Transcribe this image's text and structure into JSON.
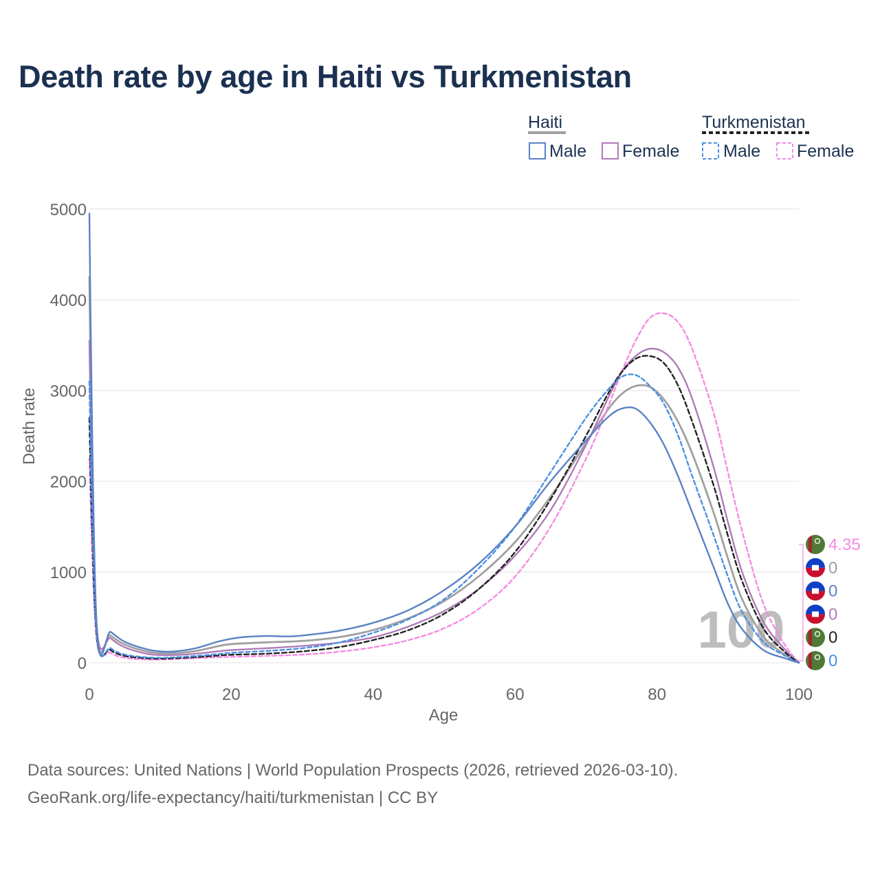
{
  "colors": {
    "haiti_male": "#5a82c6",
    "haiti_female": "#b07ab9",
    "haiti_total": "#a0a0a0",
    "turk_male": "#4a90e2",
    "turk_female": "#f58ae3",
    "turk_total": "#222222",
    "title": "#1c3151",
    "axis_text": "#666666",
    "grid": "#e6e6e6",
    "turkmenistan_flag_green": "#4f7a35",
    "haiti_flag_blue": "#0f3fc4",
    "haiti_flag_red": "#c8102e"
  },
  "chart_data": {
    "type": "line",
    "title": "Death rate by age in Haiti vs Turkmenistan",
    "xlabel": "Age",
    "ylabel": "Death rate",
    "xlim": [
      0,
      100
    ],
    "ylim": [
      0,
      5000
    ],
    "xticks": [
      0,
      20,
      40,
      60,
      80,
      100
    ],
    "yticks": [
      0,
      1000,
      2000,
      3000,
      4000,
      5000
    ],
    "grid": true,
    "legend": {
      "placement": "top-right",
      "groups": [
        {
          "country": "Haiti",
          "entries": [
            "Male",
            "Female"
          ]
        },
        {
          "country": "Turkmenistan",
          "entries": [
            "Male",
            "Female"
          ]
        }
      ]
    },
    "watermark": "100",
    "end_labels": [
      {
        "country": "Turkmenistan",
        "series": "Female",
        "value": "4.35",
        "color_key": "turk_female"
      },
      {
        "country": "Haiti",
        "series": "Total",
        "value": "0",
        "color_key": "haiti_total"
      },
      {
        "country": "Haiti",
        "series": "Male",
        "value": "0",
        "color_key": "haiti_male"
      },
      {
        "country": "Haiti",
        "series": "Female",
        "value": "0",
        "color_key": "haiti_female"
      },
      {
        "country": "Turkmenistan",
        "series": "Total",
        "value": "0",
        "color_key": "turk_total"
      },
      {
        "country": "Turkmenistan",
        "series": "Male",
        "value": "0",
        "color_key": "turk_male"
      }
    ],
    "series": [
      {
        "name": "Haiti Male",
        "country": "Haiti",
        "sex": "Male",
        "color_key": "haiti_male",
        "dash": "solid",
        "points": [
          [
            0,
            4950
          ],
          [
            1,
            450
          ],
          [
            3,
            340
          ],
          [
            5,
            230
          ],
          [
            8,
            150
          ],
          [
            10,
            125
          ],
          [
            12,
            125
          ],
          [
            15,
            160
          ],
          [
            18,
            230
          ],
          [
            20,
            265
          ],
          [
            22,
            285
          ],
          [
            25,
            295
          ],
          [
            28,
            290
          ],
          [
            30,
            300
          ],
          [
            35,
            350
          ],
          [
            40,
            440
          ],
          [
            45,
            580
          ],
          [
            50,
            800
          ],
          [
            55,
            1100
          ],
          [
            60,
            1500
          ],
          [
            65,
            2000
          ],
          [
            70,
            2450
          ],
          [
            73,
            2700
          ],
          [
            75,
            2800
          ],
          [
            77,
            2800
          ],
          [
            79,
            2650
          ],
          [
            81,
            2400
          ],
          [
            83,
            2050
          ],
          [
            85,
            1650
          ],
          [
            88,
            1050
          ],
          [
            90,
            650
          ],
          [
            92,
            370
          ],
          [
            95,
            140
          ],
          [
            98,
            50
          ],
          [
            100,
            0
          ]
        ]
      },
      {
        "name": "Haiti Female",
        "country": "Haiti",
        "sex": "Female",
        "color_key": "haiti_female",
        "dash": "solid",
        "points": [
          [
            0,
            3550
          ],
          [
            1,
            430
          ],
          [
            3,
            270
          ],
          [
            5,
            170
          ],
          [
            8,
            100
          ],
          [
            10,
            85
          ],
          [
            12,
            85
          ],
          [
            15,
            100
          ],
          [
            18,
            125
          ],
          [
            20,
            140
          ],
          [
            25,
            160
          ],
          [
            30,
            185
          ],
          [
            35,
            220
          ],
          [
            40,
            280
          ],
          [
            45,
            400
          ],
          [
            50,
            570
          ],
          [
            55,
            820
          ],
          [
            60,
            1180
          ],
          [
            65,
            1680
          ],
          [
            70,
            2400
          ],
          [
            73,
            2900
          ],
          [
            75,
            3200
          ],
          [
            77,
            3380
          ],
          [
            79,
            3460
          ],
          [
            81,
            3420
          ],
          [
            83,
            3250
          ],
          [
            85,
            2900
          ],
          [
            88,
            2150
          ],
          [
            90,
            1550
          ],
          [
            92,
            1000
          ],
          [
            95,
            450
          ],
          [
            98,
            150
          ],
          [
            100,
            0
          ]
        ]
      },
      {
        "name": "Haiti Total",
        "country": "Haiti",
        "sex": "Total",
        "color_key": "haiti_total",
        "dash": "solid",
        "points": [
          [
            0,
            4250
          ],
          [
            1,
            440
          ],
          [
            3,
            300
          ],
          [
            5,
            200
          ],
          [
            8,
            125
          ],
          [
            10,
            105
          ],
          [
            12,
            105
          ],
          [
            15,
            130
          ],
          [
            18,
            180
          ],
          [
            20,
            205
          ],
          [
            25,
            225
          ],
          [
            30,
            240
          ],
          [
            35,
            280
          ],
          [
            40,
            360
          ],
          [
            45,
            490
          ],
          [
            50,
            680
          ],
          [
            55,
            960
          ],
          [
            60,
            1330
          ],
          [
            65,
            1830
          ],
          [
            70,
            2420
          ],
          [
            73,
            2780
          ],
          [
            75,
            2960
          ],
          [
            77,
            3050
          ],
          [
            79,
            3040
          ],
          [
            81,
            2900
          ],
          [
            83,
            2650
          ],
          [
            85,
            2300
          ],
          [
            88,
            1650
          ],
          [
            90,
            1150
          ],
          [
            92,
            700
          ],
          [
            95,
            290
          ],
          [
            98,
            90
          ],
          [
            100,
            0
          ]
        ]
      },
      {
        "name": "Turkmenistan Male",
        "country": "Turkmenistan",
        "sex": "Male",
        "color_key": "turk_male",
        "dash": "dashed",
        "points": [
          [
            0,
            3100
          ],
          [
            1,
            330
          ],
          [
            3,
            160
          ],
          [
            5,
            90
          ],
          [
            8,
            60
          ],
          [
            10,
            55
          ],
          [
            12,
            60
          ],
          [
            15,
            75
          ],
          [
            18,
            95
          ],
          [
            20,
            110
          ],
          [
            25,
            130
          ],
          [
            30,
            160
          ],
          [
            35,
            220
          ],
          [
            40,
            330
          ],
          [
            45,
            480
          ],
          [
            50,
            700
          ],
          [
            55,
            1050
          ],
          [
            60,
            1500
          ],
          [
            65,
            2100
          ],
          [
            70,
            2700
          ],
          [
            73,
            3000
          ],
          [
            75,
            3150
          ],
          [
            77,
            3170
          ],
          [
            79,
            3050
          ],
          [
            81,
            2850
          ],
          [
            83,
            2500
          ],
          [
            85,
            2050
          ],
          [
            88,
            1400
          ],
          [
            90,
            950
          ],
          [
            92,
            560
          ],
          [
            95,
            230
          ],
          [
            98,
            80
          ],
          [
            100,
            0
          ]
        ]
      },
      {
        "name": "Turkmenistan Female",
        "country": "Turkmenistan",
        "sex": "Female",
        "color_key": "turk_female",
        "dash": "dashed",
        "points": [
          [
            0,
            2250
          ],
          [
            1,
            280
          ],
          [
            3,
            110
          ],
          [
            5,
            55
          ],
          [
            8,
            35
          ],
          [
            10,
            35
          ],
          [
            12,
            40
          ],
          [
            15,
            50
          ],
          [
            18,
            60
          ],
          [
            20,
            65
          ],
          [
            25,
            75
          ],
          [
            30,
            90
          ],
          [
            35,
            120
          ],
          [
            40,
            170
          ],
          [
            45,
            250
          ],
          [
            50,
            380
          ],
          [
            55,
            600
          ],
          [
            60,
            950
          ],
          [
            65,
            1500
          ],
          [
            70,
            2250
          ],
          [
            73,
            2800
          ],
          [
            75,
            3200
          ],
          [
            77,
            3550
          ],
          [
            79,
            3800
          ],
          [
            81,
            3850
          ],
          [
            83,
            3750
          ],
          [
            85,
            3450
          ],
          [
            88,
            2750
          ],
          [
            90,
            2100
          ],
          [
            92,
            1450
          ],
          [
            95,
            650
          ],
          [
            98,
            200
          ],
          [
            100,
            4.35
          ]
        ]
      },
      {
        "name": "Turkmenistan Total",
        "country": "Turkmenistan",
        "sex": "Total",
        "color_key": "turk_total",
        "dash": "dashed",
        "points": [
          [
            0,
            2700
          ],
          [
            1,
            310
          ],
          [
            3,
            140
          ],
          [
            5,
            75
          ],
          [
            8,
            50
          ],
          [
            10,
            45
          ],
          [
            12,
            50
          ],
          [
            15,
            62
          ],
          [
            18,
            78
          ],
          [
            20,
            88
          ],
          [
            25,
            100
          ],
          [
            30,
            125
          ],
          [
            35,
            170
          ],
          [
            40,
            250
          ],
          [
            45,
            360
          ],
          [
            50,
            540
          ],
          [
            55,
            820
          ],
          [
            60,
            1220
          ],
          [
            65,
            1800
          ],
          [
            70,
            2500
          ],
          [
            73,
            2950
          ],
          [
            75,
            3200
          ],
          [
            77,
            3350
          ],
          [
            79,
            3380
          ],
          [
            81,
            3300
          ],
          [
            83,
            3050
          ],
          [
            85,
            2650
          ],
          [
            88,
            1950
          ],
          [
            90,
            1400
          ],
          [
            92,
            900
          ],
          [
            95,
            380
          ],
          [
            98,
            120
          ],
          [
            100,
            0
          ]
        ]
      }
    ]
  },
  "legend_labels": {
    "haiti": "Haiti",
    "turkmenistan": "Turkmenistan",
    "haiti_male": "Male",
    "haiti_female": "Female",
    "turk_male": "Male",
    "turk_female": "Female"
  },
  "footer": {
    "sources": "Data sources: United Nations | World Population Prospects (2026, retrieved 2026-03-10).",
    "link": "GeoRank.org/life-expectancy/haiti/turkmenistan | CC BY"
  }
}
